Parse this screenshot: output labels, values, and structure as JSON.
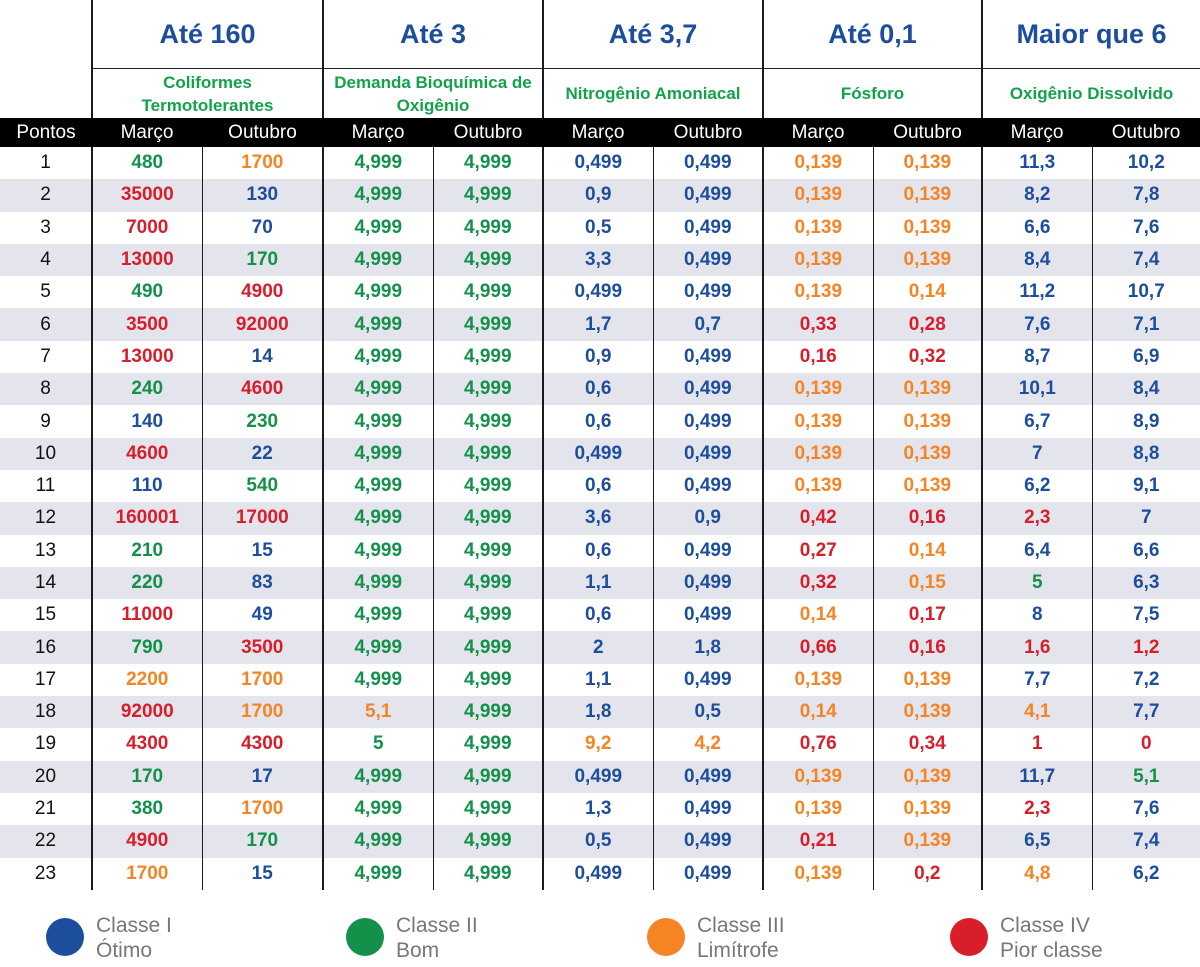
{
  "limits": [
    "Até 160",
    "Até 3",
    "Até 3,7",
    "Até 0,1",
    "Maior que 6"
  ],
  "params": [
    "Coliformes Termotolerantes",
    "Demanda Bioquímica de Oxigênio",
    "Nitrogênio Amoniacal",
    "Fósforo",
    "Oxigênio Dissolvido"
  ],
  "header": {
    "points": "Pontos",
    "march": "Março",
    "october": "Outubro"
  },
  "classes": [
    {
      "title": "Classe I",
      "desc": "Ótimo",
      "color": "#1d4e9c"
    },
    {
      "title": "Classe II",
      "desc": "Bom",
      "color": "#13914a"
    },
    {
      "title": "Classe III",
      "desc": "Limítrofe",
      "color": "#f48424"
    },
    {
      "title": "Classe IV",
      "desc": "Pior classe",
      "color": "#d81e2b"
    }
  ],
  "rows": [
    {
      "p": "1",
      "v": [
        [
          "480",
          2
        ],
        [
          "1700",
          3
        ],
        [
          "4,999",
          2
        ],
        [
          "4,999",
          2
        ],
        [
          "0,499",
          1
        ],
        [
          "0,499",
          1
        ],
        [
          "0,139",
          3
        ],
        [
          "0,139",
          3
        ],
        [
          "11,3",
          1
        ],
        [
          "10,2",
          1
        ]
      ]
    },
    {
      "p": "2",
      "v": [
        [
          "35000",
          4
        ],
        [
          "130",
          1
        ],
        [
          "4,999",
          2
        ],
        [
          "4,999",
          2
        ],
        [
          "0,9",
          1
        ],
        [
          "0,499",
          1
        ],
        [
          "0,139",
          3
        ],
        [
          "0,139",
          3
        ],
        [
          "8,2",
          1
        ],
        [
          "7,8",
          1
        ]
      ]
    },
    {
      "p": "3",
      "v": [
        [
          "7000",
          4
        ],
        [
          "70",
          1
        ],
        [
          "4,999",
          2
        ],
        [
          "4,999",
          2
        ],
        [
          "0,5",
          1
        ],
        [
          "0,499",
          1
        ],
        [
          "0,139",
          3
        ],
        [
          "0,139",
          3
        ],
        [
          "6,6",
          1
        ],
        [
          "7,6",
          1
        ]
      ]
    },
    {
      "p": "4",
      "v": [
        [
          "13000",
          4
        ],
        [
          "170",
          2
        ],
        [
          "4,999",
          2
        ],
        [
          "4,999",
          2
        ],
        [
          "3,3",
          1
        ],
        [
          "0,499",
          1
        ],
        [
          "0,139",
          3
        ],
        [
          "0,139",
          3
        ],
        [
          "8,4",
          1
        ],
        [
          "7,4",
          1
        ]
      ]
    },
    {
      "p": "5",
      "v": [
        [
          "490",
          2
        ],
        [
          "4900",
          4
        ],
        [
          "4,999",
          2
        ],
        [
          "4,999",
          2
        ],
        [
          "0,499",
          1
        ],
        [
          "0,499",
          1
        ],
        [
          "0,139",
          3
        ],
        [
          "0,14",
          3
        ],
        [
          "11,2",
          1
        ],
        [
          "10,7",
          1
        ]
      ]
    },
    {
      "p": "6",
      "v": [
        [
          "3500",
          4
        ],
        [
          "92000",
          4
        ],
        [
          "4,999",
          2
        ],
        [
          "4,999",
          2
        ],
        [
          "1,7",
          1
        ],
        [
          "0,7",
          1
        ],
        [
          "0,33",
          4
        ],
        [
          "0,28",
          4
        ],
        [
          "7,6",
          1
        ],
        [
          "7,1",
          1
        ]
      ]
    },
    {
      "p": "7",
      "v": [
        [
          "13000",
          4
        ],
        [
          "14",
          1
        ],
        [
          "4,999",
          2
        ],
        [
          "4,999",
          2
        ],
        [
          "0,9",
          1
        ],
        [
          "0,499",
          1
        ],
        [
          "0,16",
          4
        ],
        [
          "0,32",
          4
        ],
        [
          "8,7",
          1
        ],
        [
          "6,9",
          1
        ]
      ]
    },
    {
      "p": "8",
      "v": [
        [
          "240",
          2
        ],
        [
          "4600",
          4
        ],
        [
          "4,999",
          2
        ],
        [
          "4,999",
          2
        ],
        [
          "0,6",
          1
        ],
        [
          "0,499",
          1
        ],
        [
          "0,139",
          3
        ],
        [
          "0,139",
          3
        ],
        [
          "10,1",
          1
        ],
        [
          "8,4",
          1
        ]
      ]
    },
    {
      "p": "9",
      "v": [
        [
          "140",
          1
        ],
        [
          "230",
          2
        ],
        [
          "4,999",
          2
        ],
        [
          "4,999",
          2
        ],
        [
          "0,6",
          1
        ],
        [
          "0,499",
          1
        ],
        [
          "0,139",
          3
        ],
        [
          "0,139",
          3
        ],
        [
          "6,7",
          1
        ],
        [
          "8,9",
          1
        ]
      ]
    },
    {
      "p": "10",
      "v": [
        [
          "4600",
          4
        ],
        [
          "22",
          1
        ],
        [
          "4,999",
          2
        ],
        [
          "4,999",
          2
        ],
        [
          "0,499",
          1
        ],
        [
          "0,499",
          1
        ],
        [
          "0,139",
          3
        ],
        [
          "0,139",
          3
        ],
        [
          "7",
          1
        ],
        [
          "8,8",
          1
        ]
      ]
    },
    {
      "p": "11",
      "v": [
        [
          "110",
          1
        ],
        [
          "540",
          2
        ],
        [
          "4,999",
          2
        ],
        [
          "4,999",
          2
        ],
        [
          "0,6",
          1
        ],
        [
          "0,499",
          1
        ],
        [
          "0,139",
          3
        ],
        [
          "0,139",
          3
        ],
        [
          "6,2",
          1
        ],
        [
          "9,1",
          1
        ]
      ]
    },
    {
      "p": "12",
      "v": [
        [
          "160001",
          4
        ],
        [
          "17000",
          4
        ],
        [
          "4,999",
          2
        ],
        [
          "4,999",
          2
        ],
        [
          "3,6",
          1
        ],
        [
          "0,9",
          1
        ],
        [
          "0,42",
          4
        ],
        [
          "0,16",
          4
        ],
        [
          "2,3",
          4
        ],
        [
          "7",
          1
        ]
      ]
    },
    {
      "p": "13",
      "v": [
        [
          "210",
          2
        ],
        [
          "15",
          1
        ],
        [
          "4,999",
          2
        ],
        [
          "4,999",
          2
        ],
        [
          "0,6",
          1
        ],
        [
          "0,499",
          1
        ],
        [
          "0,27",
          4
        ],
        [
          "0,14",
          3
        ],
        [
          "6,4",
          1
        ],
        [
          "6,6",
          1
        ]
      ]
    },
    {
      "p": "14",
      "v": [
        [
          "220",
          2
        ],
        [
          "83",
          1
        ],
        [
          "4,999",
          2
        ],
        [
          "4,999",
          2
        ],
        [
          "1,1",
          1
        ],
        [
          "0,499",
          1
        ],
        [
          "0,32",
          4
        ],
        [
          "0,15",
          3
        ],
        [
          "5",
          2
        ],
        [
          "6,3",
          1
        ]
      ]
    },
    {
      "p": "15",
      "v": [
        [
          "11000",
          4
        ],
        [
          "49",
          1
        ],
        [
          "4,999",
          2
        ],
        [
          "4,999",
          2
        ],
        [
          "0,6",
          1
        ],
        [
          "0,499",
          1
        ],
        [
          "0,14",
          3
        ],
        [
          "0,17",
          4
        ],
        [
          "8",
          1
        ],
        [
          "7,5",
          1
        ]
      ]
    },
    {
      "p": "16",
      "v": [
        [
          "790",
          2
        ],
        [
          "3500",
          4
        ],
        [
          "4,999",
          2
        ],
        [
          "4,999",
          2
        ],
        [
          "2",
          1
        ],
        [
          "1,8",
          1
        ],
        [
          "0,66",
          4
        ],
        [
          "0,16",
          4
        ],
        [
          "1,6",
          4
        ],
        [
          "1,2",
          4
        ]
      ]
    },
    {
      "p": "17",
      "v": [
        [
          "2200",
          3
        ],
        [
          "1700",
          3
        ],
        [
          "4,999",
          2
        ],
        [
          "4,999",
          2
        ],
        [
          "1,1",
          1
        ],
        [
          "0,499",
          1
        ],
        [
          "0,139",
          3
        ],
        [
          "0,139",
          3
        ],
        [
          "7,7",
          1
        ],
        [
          "7,2",
          1
        ]
      ]
    },
    {
      "p": "18",
      "v": [
        [
          "92000",
          4
        ],
        [
          "1700",
          3
        ],
        [
          "5,1",
          3
        ],
        [
          "4,999",
          2
        ],
        [
          "1,8",
          1
        ],
        [
          "0,5",
          1
        ],
        [
          "0,14",
          3
        ],
        [
          "0,139",
          3
        ],
        [
          "4,1",
          3
        ],
        [
          "7,7",
          1
        ]
      ]
    },
    {
      "p": "19",
      "v": [
        [
          "4300",
          4
        ],
        [
          "4300",
          4
        ],
        [
          "5",
          2
        ],
        [
          "4,999",
          2
        ],
        [
          "9,2",
          3
        ],
        [
          "4,2",
          3
        ],
        [
          "0,76",
          4
        ],
        [
          "0,34",
          4
        ],
        [
          "1",
          4
        ],
        [
          "0",
          4
        ]
      ]
    },
    {
      "p": "20",
      "v": [
        [
          "170",
          2
        ],
        [
          "17",
          1
        ],
        [
          "4,999",
          2
        ],
        [
          "4,999",
          2
        ],
        [
          "0,499",
          1
        ],
        [
          "0,499",
          1
        ],
        [
          "0,139",
          3
        ],
        [
          "0,139",
          3
        ],
        [
          "11,7",
          1
        ],
        [
          "5,1",
          2
        ]
      ]
    },
    {
      "p": "21",
      "v": [
        [
          "380",
          2
        ],
        [
          "1700",
          3
        ],
        [
          "4,999",
          2
        ],
        [
          "4,999",
          2
        ],
        [
          "1,3",
          1
        ],
        [
          "0,499",
          1
        ],
        [
          "0,139",
          3
        ],
        [
          "0,139",
          3
        ],
        [
          "2,3",
          4
        ],
        [
          "7,6",
          1
        ]
      ]
    },
    {
      "p": "22",
      "v": [
        [
          "4900",
          4
        ],
        [
          "170",
          2
        ],
        [
          "4,999",
          2
        ],
        [
          "4,999",
          2
        ],
        [
          "0,5",
          1
        ],
        [
          "0,499",
          1
        ],
        [
          "0,21",
          4
        ],
        [
          "0,139",
          3
        ],
        [
          "6,5",
          1
        ],
        [
          "7,4",
          1
        ]
      ]
    },
    {
      "p": "23",
      "v": [
        [
          "1700",
          3
        ],
        [
          "15",
          1
        ],
        [
          "4,999",
          2
        ],
        [
          "4,999",
          2
        ],
        [
          "0,499",
          1
        ],
        [
          "0,499",
          1
        ],
        [
          "0,139",
          3
        ],
        [
          "0,2",
          4
        ],
        [
          "4,8",
          3
        ],
        [
          "6,2",
          1
        ]
      ]
    }
  ]
}
